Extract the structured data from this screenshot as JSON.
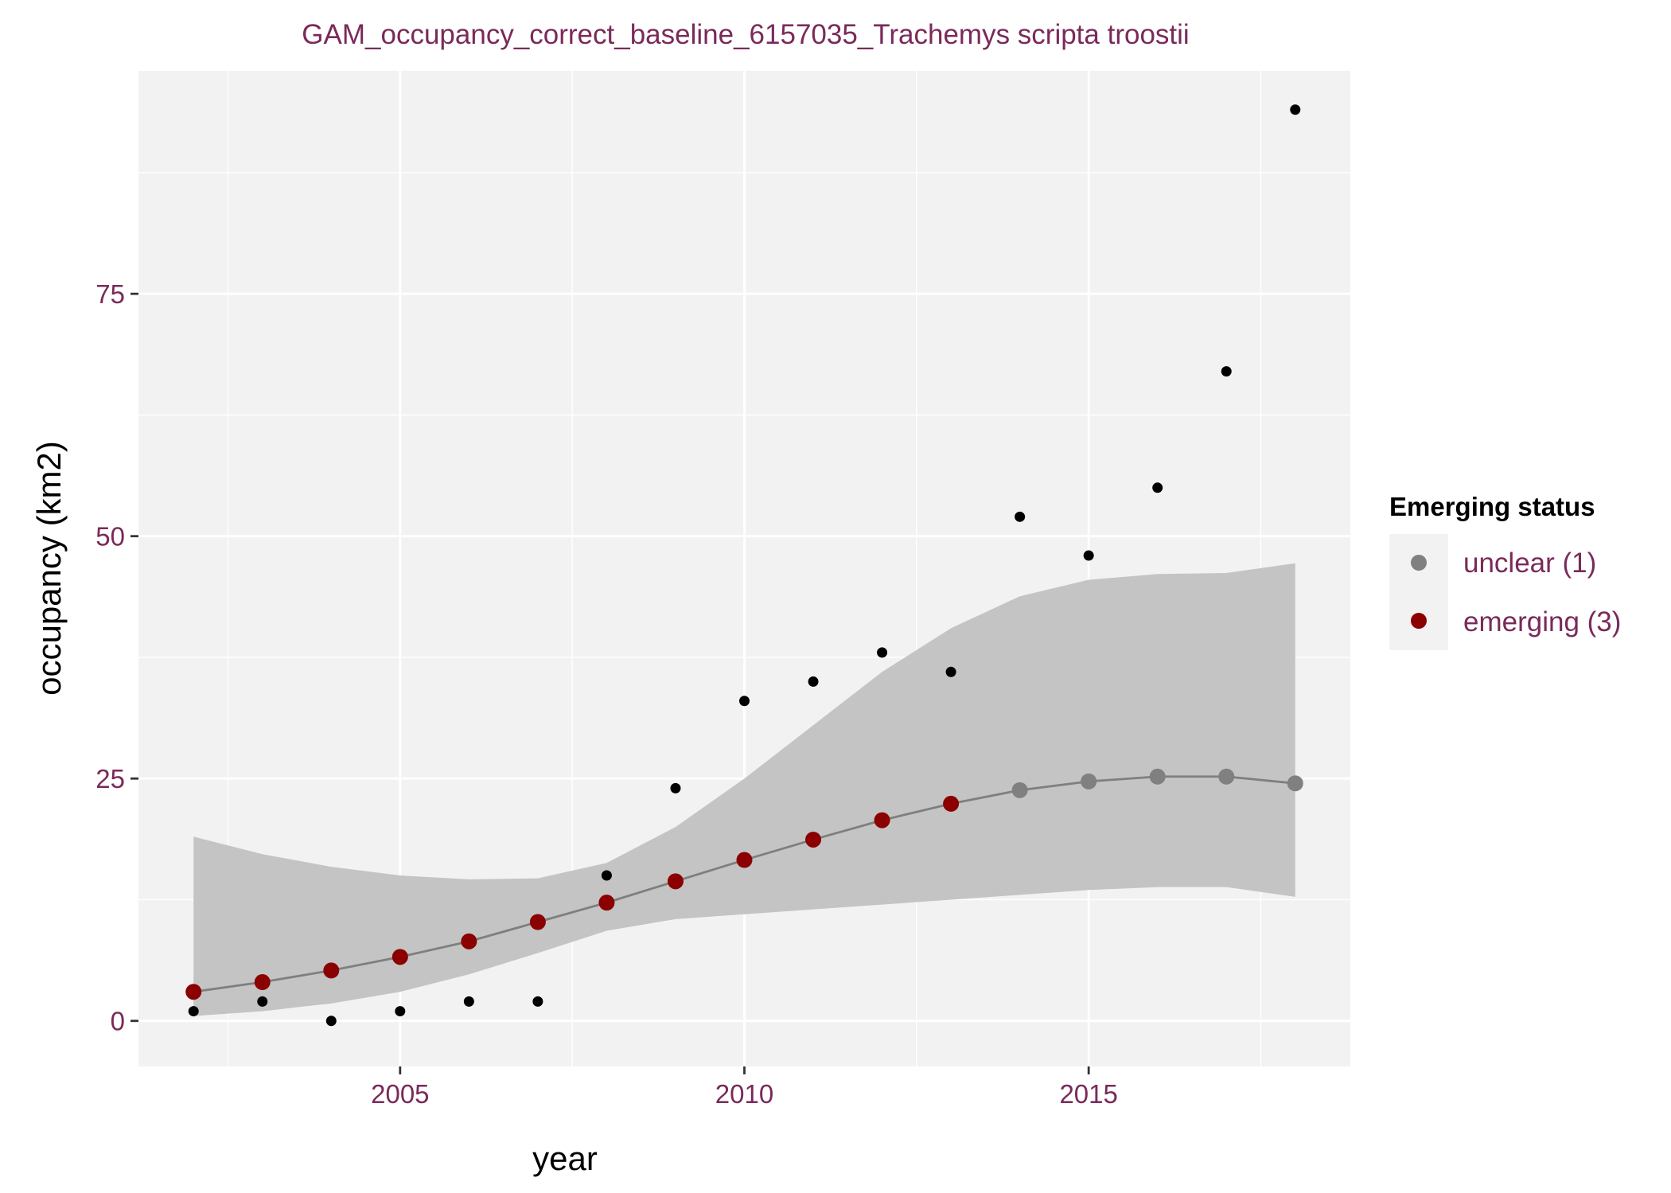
{
  "chart_data": {
    "type": "scatter",
    "title": "GAM_occupancy_correct_baseline_6157035_Trachemys scripta troostii",
    "xlabel": "year",
    "ylabel": "occupancy (km2)",
    "xlim": [
      2001.2,
      2018.8
    ],
    "ylim": [
      -4.7,
      98
    ],
    "x_ticks": [
      2005,
      2010,
      2015
    ],
    "x_tick_labels": [
      "2005",
      "2010",
      "2015"
    ],
    "y_ticks": [
      0,
      25,
      50,
      75
    ],
    "y_tick_labels": [
      "0",
      "25",
      "50",
      "75"
    ],
    "grid": true,
    "legend_position": "right",
    "legend": {
      "title": "Emerging status",
      "items": [
        {
          "label": "unclear (1)",
          "color": "#808080"
        },
        {
          "label": "emerging (3)",
          "color": "#8b0000"
        }
      ]
    },
    "observed": {
      "color": "#000000",
      "x": [
        2002,
        2003,
        2004,
        2005,
        2006,
        2007,
        2008,
        2009,
        2010,
        2011,
        2012,
        2013,
        2014,
        2015,
        2016,
        2017,
        2018
      ],
      "y": [
        1,
        2,
        0,
        1,
        2,
        2,
        15,
        24,
        33,
        35,
        38,
        36,
        52,
        48,
        55,
        67,
        94
      ]
    },
    "fit": {
      "line_color": "#7f7f7f",
      "band_color": "#c4c4c4",
      "x": [
        2002,
        2003,
        2004,
        2005,
        2006,
        2007,
        2008,
        2009,
        2010,
        2011,
        2012,
        2013,
        2014,
        2015,
        2016,
        2017,
        2018
      ],
      "y": [
        3,
        4,
        5.2,
        6.6,
        8.2,
        10.2,
        12.2,
        14.4,
        16.6,
        18.7,
        20.7,
        22.4,
        23.8,
        24.7,
        25.2,
        25.2,
        24.5
      ],
      "lower": [
        0.5,
        1,
        1.8,
        3,
        4.8,
        7,
        9.3,
        10.5,
        11,
        11.5,
        12,
        12.5,
        13,
        13.5,
        13.8,
        13.8,
        12.8
      ],
      "upper": [
        19,
        17.2,
        15.9,
        15,
        14.6,
        14.7,
        16.3,
        20,
        25,
        30.5,
        36,
        40.5,
        43.8,
        45.5,
        46.1,
        46.2,
        47.2
      ],
      "status": [
        "emerging",
        "emerging",
        "emerging",
        "emerging",
        "emerging",
        "emerging",
        "emerging",
        "emerging",
        "emerging",
        "emerging",
        "emerging",
        "emerging",
        "unclear",
        "unclear",
        "unclear",
        "unclear",
        "unclear"
      ]
    }
  }
}
